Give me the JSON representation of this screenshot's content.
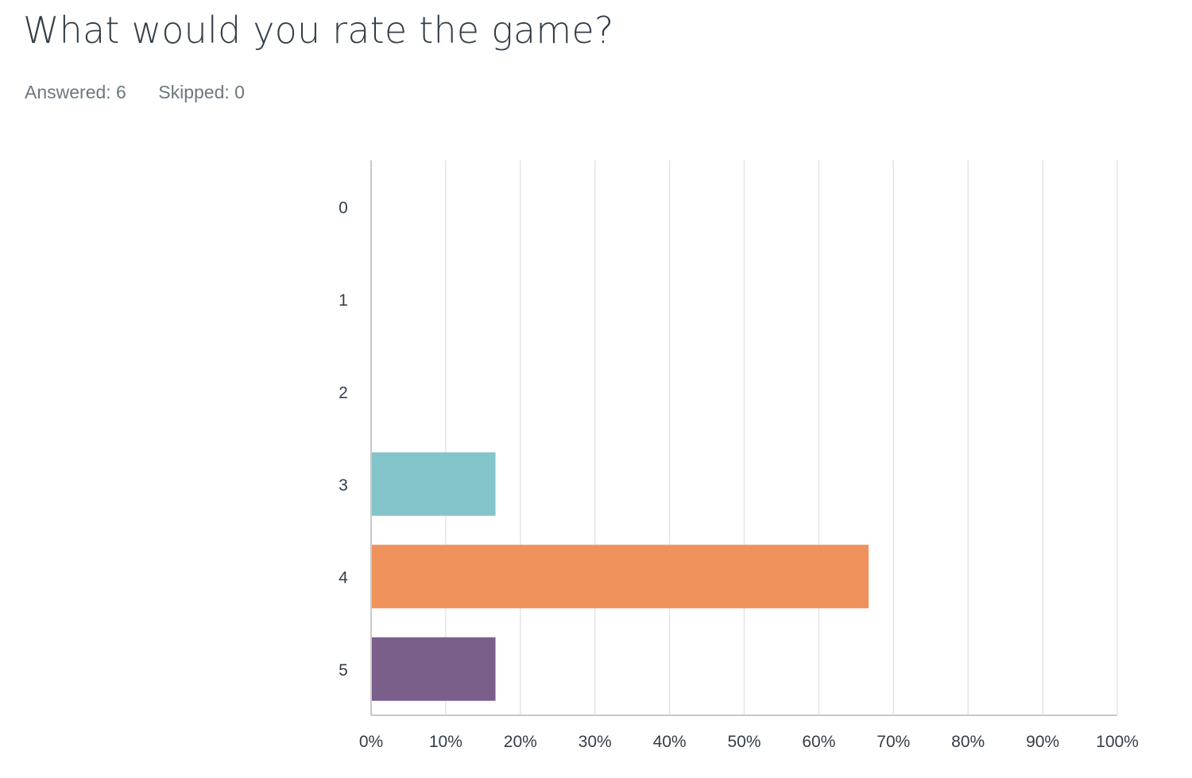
{
  "question": {
    "title": "What would you rate the game?",
    "answered_label": "Answered: 6",
    "skipped_label": "Skipped: 0"
  },
  "colors": {
    "grid": "#e5e5e5",
    "axis": "#c8c8c8",
    "text": "#333e48"
  },
  "chart_data": {
    "type": "bar",
    "orientation": "horizontal",
    "title": "",
    "xlabel": "",
    "ylabel": "",
    "categories": [
      "0",
      "1",
      "2",
      "3",
      "4",
      "5"
    ],
    "values": [
      0,
      0,
      0,
      16.67,
      66.67,
      16.67
    ],
    "bar_colors": [
      "#00bf6f",
      "#f9be00",
      "#6bc8cd",
      "#84c5cb",
      "#ef925c",
      "#7a5f8a"
    ],
    "xlim": [
      0,
      100
    ],
    "xticks": [
      "0%",
      "10%",
      "20%",
      "30%",
      "40%",
      "50%",
      "60%",
      "70%",
      "80%",
      "90%",
      "100%"
    ],
    "grid": true,
    "legend": "none"
  }
}
